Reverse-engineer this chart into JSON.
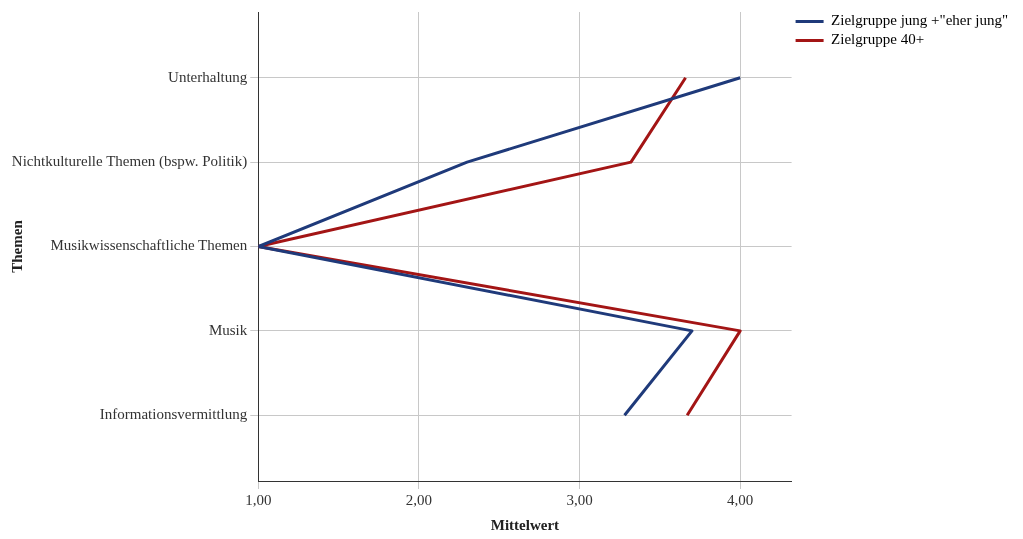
{
  "chart_data": {
    "type": "line",
    "orientation": "horizontal",
    "xlabel": "Mittelwert",
    "ylabel": "Themen",
    "categories": [
      "Unterhaltung",
      "Nichtkulturelle Themen (bspw. Politik)",
      "Musikwissenschaftliche Themen",
      "Musik",
      "Informationsvermittlung"
    ],
    "series": [
      {
        "name": "Zielgruppe jung +\"eher jung\"",
        "color": "#1f3a7a",
        "values": [
          4.0,
          2.3,
          1.0,
          3.7,
          3.28
        ]
      },
      {
        "name": "Zielgruppe 40+",
        "color": "#a31515",
        "values": [
          3.66,
          3.32,
          1.0,
          4.0,
          3.67
        ]
      }
    ],
    "xlim": [
      1,
      4.32
    ],
    "xticks": [
      {
        "value": 1,
        "label": "1,00"
      },
      {
        "value": 2,
        "label": "2,00"
      },
      {
        "value": 3,
        "label": "3,00"
      },
      {
        "value": 4,
        "label": "4,00"
      }
    ],
    "grid": true,
    "legend": "top right",
    "marker": "none",
    "line_style": "solid"
  }
}
